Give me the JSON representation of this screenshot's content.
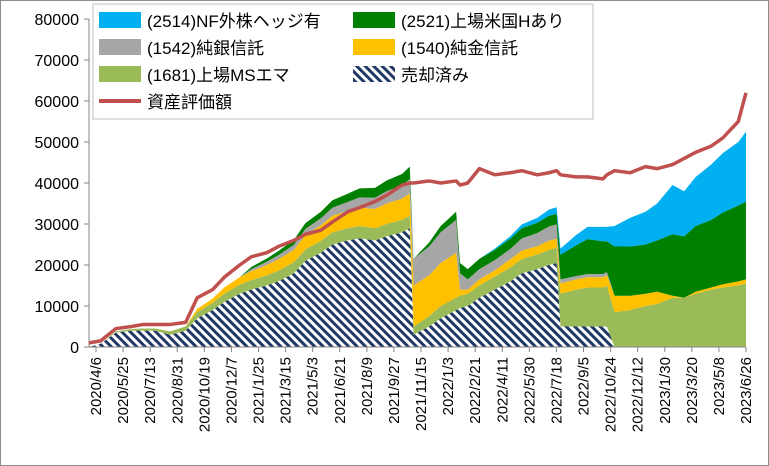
{
  "chart_data": {
    "type": "area",
    "stacked": true,
    "title": "",
    "xlabel": "",
    "ylabel": "",
    "ylim": [
      0,
      80000
    ],
    "yticks": [
      "0",
      "10000",
      "20000",
      "30000",
      "40000",
      "50000",
      "60000",
      "70000",
      "80000"
    ],
    "xticks": [
      "2020/4/6",
      "2020/5/25",
      "2020/7/13",
      "2020/8/31",
      "2020/10/19",
      "2020/12/7",
      "2021/1/25",
      "2021/3/15",
      "2021/5/3",
      "2021/6/21",
      "2021/8/9",
      "2021/9/27",
      "2021/11/15",
      "2022/1/3",
      "2022/2/21",
      "2022/4/11",
      "2022/5/30",
      "2022/7/18",
      "2022/9/5",
      "2022/10/24",
      "2022/12/12",
      "2023/1/30",
      "2023/3/20",
      "2023/5/8",
      "2023/6/26"
    ],
    "x": [
      "2020/4/6",
      "2020/4/27",
      "2020/5/25",
      "2020/6/22",
      "2020/7/13",
      "2020/8/3",
      "2020/8/31",
      "2020/9/28",
      "2020/10/19",
      "2020/11/16",
      "2020/12/7",
      "2021/1/4",
      "2021/1/25",
      "2021/2/22",
      "2021/3/15",
      "2021/4/12",
      "2021/5/3",
      "2021/5/31",
      "2021/6/21",
      "2021/7/19",
      "2021/8/9",
      "2021/9/6",
      "2021/9/27",
      "2021/10/25",
      "2021/11/8",
      "2021/11/15",
      "2021/12/13",
      "2022/1/3",
      "2022/1/31",
      "2022/2/7",
      "2022/2/21",
      "2022/3/14",
      "2022/4/11",
      "2022/5/9",
      "2022/5/30",
      "2022/6/27",
      "2022/7/18",
      "2022/8/1",
      "2022/8/8",
      "2022/9/5",
      "2022/9/26",
      "2022/10/24",
      "2022/10/31",
      "2022/11/14",
      "2022/12/12",
      "2023/1/9",
      "2023/1/30",
      "2023/2/27",
      "2023/3/20",
      "2023/4/10",
      "2023/5/8",
      "2023/5/29",
      "2023/6/26",
      "2023/7/10"
    ],
    "series": [
      {
        "name": "売却済み",
        "type": "area",
        "pattern": "hatch",
        "color": "#203864",
        "values": [
          0,
          800,
          3500,
          4000,
          4000,
          4000,
          3000,
          4000,
          7000,
          9000,
          11000,
          13000,
          14000,
          15000,
          16000,
          18000,
          21000,
          23000,
          25000,
          26000,
          26500,
          26000,
          27000,
          28000,
          29000,
          3000,
          5000,
          7000,
          9000,
          9500,
          10000,
          12000,
          14000,
          16000,
          18000,
          19000,
          20000,
          20500,
          5000,
          5000,
          5000,
          5000,
          5000,
          0,
          0,
          0,
          0,
          0,
          0,
          0,
          0,
          0,
          0,
          0
        ]
      },
      {
        "name": "(1681)上場MSエマ",
        "type": "area",
        "color": "#9bbb59",
        "values": [
          0,
          0,
          300,
          400,
          500,
          500,
          800,
          1000,
          1500,
          1800,
          2000,
          2200,
          2300,
          2500,
          2600,
          2700,
          2800,
          2900,
          3000,
          3000,
          3000,
          3000,
          3000,
          3000,
          3000,
          2000,
          2500,
          3000,
          3000,
          3000,
          3000,
          3000,
          3200,
          3400,
          3500,
          3600,
          3700,
          3700,
          8000,
          9000,
          9500,
          9500,
          10000,
          8500,
          9000,
          10000,
          10500,
          12000,
          12000,
          13000,
          14000,
          14500,
          15000,
          15500
        ]
      },
      {
        "name": "(1540)純金信託",
        "type": "area",
        "color": "#ffc000",
        "values": [
          0,
          0,
          0,
          0,
          0,
          0,
          0,
          0,
          800,
          1000,
          1500,
          1800,
          2200,
          2500,
          2800,
          3000,
          3500,
          3800,
          4000,
          4200,
          4500,
          4700,
          5000,
          5200,
          5500,
          10000,
          10000,
          10500,
          11000,
          1500,
          1000,
          1500,
          1500,
          2000,
          2000,
          2000,
          2200,
          2200,
          2500,
          2500,
          2500,
          2500,
          2500,
          4000,
          3500,
          3000,
          3000,
          500,
          0,
          500,
          500,
          800,
          1000,
          1000
        ]
      },
      {
        "name": "(1542)純銀信託",
        "type": "area",
        "color": "#a6a6a6",
        "values": [
          0,
          0,
          0,
          0,
          0,
          0,
          0,
          0,
          0,
          0,
          0,
          0,
          500,
          800,
          1000,
          1200,
          1500,
          1700,
          2000,
          2200,
          2500,
          2700,
          3000,
          3200,
          3500,
          6500,
          7000,
          7500,
          8000,
          4000,
          2500,
          2500,
          2500,
          2500,
          3000,
          3200,
          3500,
          3500,
          1000,
          800,
          800,
          800,
          800,
          0,
          0,
          0,
          0,
          0,
          0,
          0,
          0,
          0,
          0,
          0
        ]
      },
      {
        "name": "(2521)上場米国Hあり",
        "type": "area",
        "color": "#008000",
        "values": [
          0,
          0,
          0,
          0,
          0,
          0,
          0,
          0,
          0,
          0,
          0,
          0,
          500,
          800,
          1000,
          1200,
          1400,
          1600,
          1800,
          2000,
          2200,
          2400,
          2600,
          2800,
          3000,
          0,
          1000,
          1500,
          2000,
          2500,
          2500,
          2500,
          2500,
          2500,
          2500,
          2500,
          2600,
          2600,
          6000,
          7500,
          8500,
          8000,
          7500,
          12000,
          12000,
          12000,
          12500,
          15000,
          15000,
          16000,
          16500,
          17500,
          18500,
          19000
        ]
      },
      {
        "name": "(2514)NF外株ヘッジ有",
        "type": "area",
        "color": "#00b0f0",
        "values": [
          0,
          0,
          0,
          0,
          0,
          0,
          0,
          0,
          0,
          0,
          0,
          0,
          0,
          0,
          0,
          0,
          0,
          0,
          0,
          0,
          0,
          0,
          0,
          0,
          0,
          0,
          0,
          0,
          0,
          0,
          0,
          0,
          300,
          600,
          900,
          1200,
          1500,
          1600,
          1500,
          2500,
          3000,
          3500,
          3500,
          5000,
          7000,
          8000,
          9000,
          12000,
          11000,
          12000,
          13500,
          14500,
          15500,
          17000
        ]
      },
      {
        "name": "資産評価額",
        "type": "line",
        "color": "#c0504d",
        "values": [
          1000,
          1500,
          4500,
          5000,
          5500,
          5500,
          5500,
          6000,
          12000,
          14000,
          17000,
          20000,
          22000,
          23000,
          24500,
          26000,
          27500,
          28500,
          30500,
          33000,
          34000,
          35500,
          37000,
          39500,
          40000,
          40000,
          40500,
          40000,
          40500,
          39500,
          40000,
          43500,
          42000,
          42500,
          43000,
          42000,
          42500,
          43000,
          42000,
          41500,
          41500,
          41000,
          42000,
          43000,
          42500,
          44000,
          43500,
          44500,
          46000,
          47500,
          49000,
          51000,
          55000,
          62000
        ]
      }
    ],
    "legend": {
      "position": "top-inside",
      "columns": 2
    },
    "grid": false
  }
}
